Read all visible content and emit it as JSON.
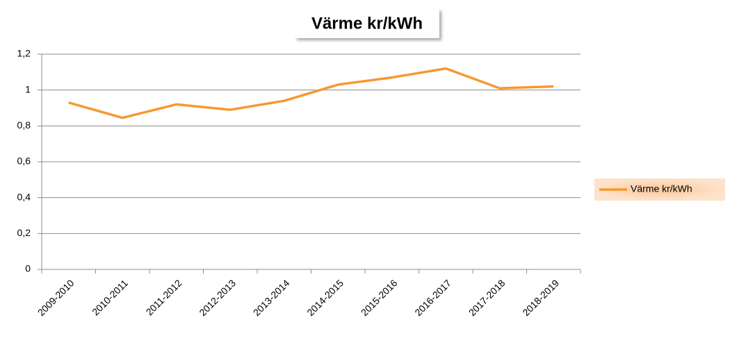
{
  "chart_data": {
    "type": "line",
    "title": "Värme kr/kWh",
    "categories": [
      "2009-2010",
      "2010-2011",
      "2011-2012",
      "2012-2013",
      "2013-2014",
      "2014-2015",
      "2015-2016",
      "2016-2017",
      "2017-2018",
      "2018-2019"
    ],
    "series": [
      {
        "name": "Värme kr/kWh",
        "color": "#f7982f",
        "values": [
          0.93,
          0.845,
          0.92,
          0.89,
          0.94,
          1.03,
          1.07,
          1.12,
          1.01,
          1.02
        ]
      }
    ],
    "ylim": [
      0,
      1.2
    ],
    "yticks": [
      0,
      {
        "value": 0.2,
        "label": "0,2"
      },
      {
        "value": 0.4,
        "label": "0,4"
      },
      {
        "value": 0.6,
        "label": "0,6"
      },
      {
        "value": 0.8,
        "label": "0,8"
      },
      1,
      {
        "value": 1.2,
        "label": "1,2"
      }
    ],
    "grid": true,
    "legend": "right"
  }
}
